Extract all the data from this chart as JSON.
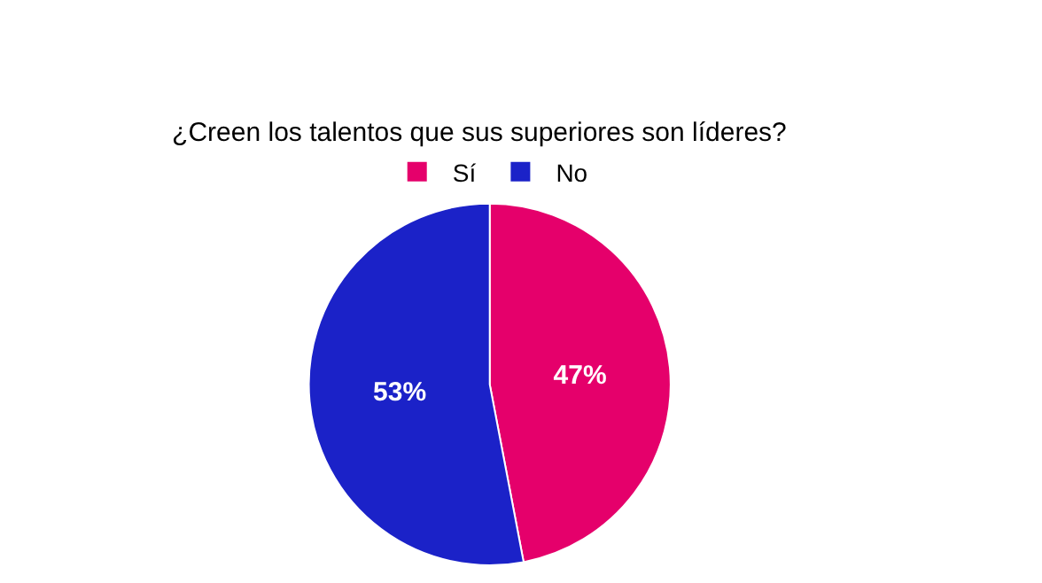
{
  "chart_data": {
    "type": "pie",
    "title": "¿Creen los talentos que sus superiores son líderes?",
    "categories": [
      "Sí",
      "No"
    ],
    "values": [
      47,
      53
    ],
    "colors": [
      "#e5006b",
      "#1b22c8"
    ],
    "value_labels": [
      "47%",
      "53%"
    ],
    "legend": "top"
  }
}
